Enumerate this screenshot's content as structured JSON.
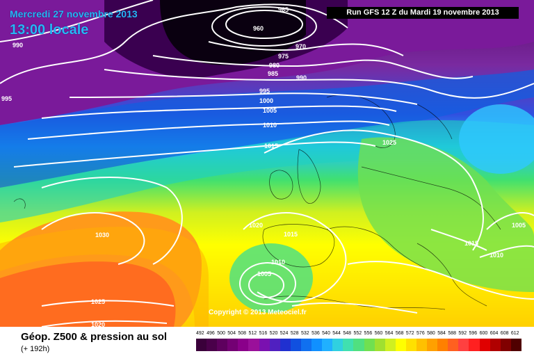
{
  "title": {
    "date": "Mercredi 27 novembre 2013",
    "time": "13:00 locale",
    "run": "Run GFS 12 Z du Mardi 19 novembre 2013"
  },
  "copyright": "Copyright © 2013 Meteociel.fr",
  "footer": {
    "title": "Géop. Z500 & pression au sol",
    "subtitle": "(+ 192h)"
  },
  "isobar_labels": [
    "995",
    "990",
    "965",
    "960",
    "970",
    "975",
    "980",
    "985",
    "990",
    "995",
    "1000",
    "1005",
    "1010",
    "1015",
    "1025",
    "1020",
    "1015",
    "1030",
    "1010",
    "1005",
    "1025",
    "1020",
    "1015",
    "1010",
    "1005"
  ],
  "legend": {
    "values": [
      "492",
      "496",
      "500",
      "504",
      "508",
      "512",
      "516",
      "520",
      "524",
      "528",
      "532",
      "536",
      "540",
      "544",
      "548",
      "552",
      "556",
      "560",
      "564",
      "568",
      "572",
      "576",
      "580",
      "584",
      "588",
      "592",
      "596",
      "600",
      "604",
      "608",
      "612"
    ],
    "colors": [
      "#3a003a",
      "#4a004a",
      "#5e005e",
      "#740074",
      "#8a008a",
      "#9a109a",
      "#7a10b0",
      "#5020c0",
      "#2030d0",
      "#1050e0",
      "#1070f0",
      "#1090ff",
      "#20b0ff",
      "#30d0e0",
      "#40e0b0",
      "#50e080",
      "#70e050",
      "#a0e030",
      "#d0f020",
      "#ffff00",
      "#ffe000",
      "#ffc000",
      "#ffa000",
      "#ff8000",
      "#ff6020",
      "#ff4040",
      "#ff2020",
      "#e00000",
      "#b00000",
      "#800000",
      "#500000"
    ]
  },
  "map_colors": {
    "sea_yellow": "#ffff00",
    "orange": "#ff9a1a",
    "deep_purple": "#4a0050",
    "black_low": "#0a0010"
  }
}
